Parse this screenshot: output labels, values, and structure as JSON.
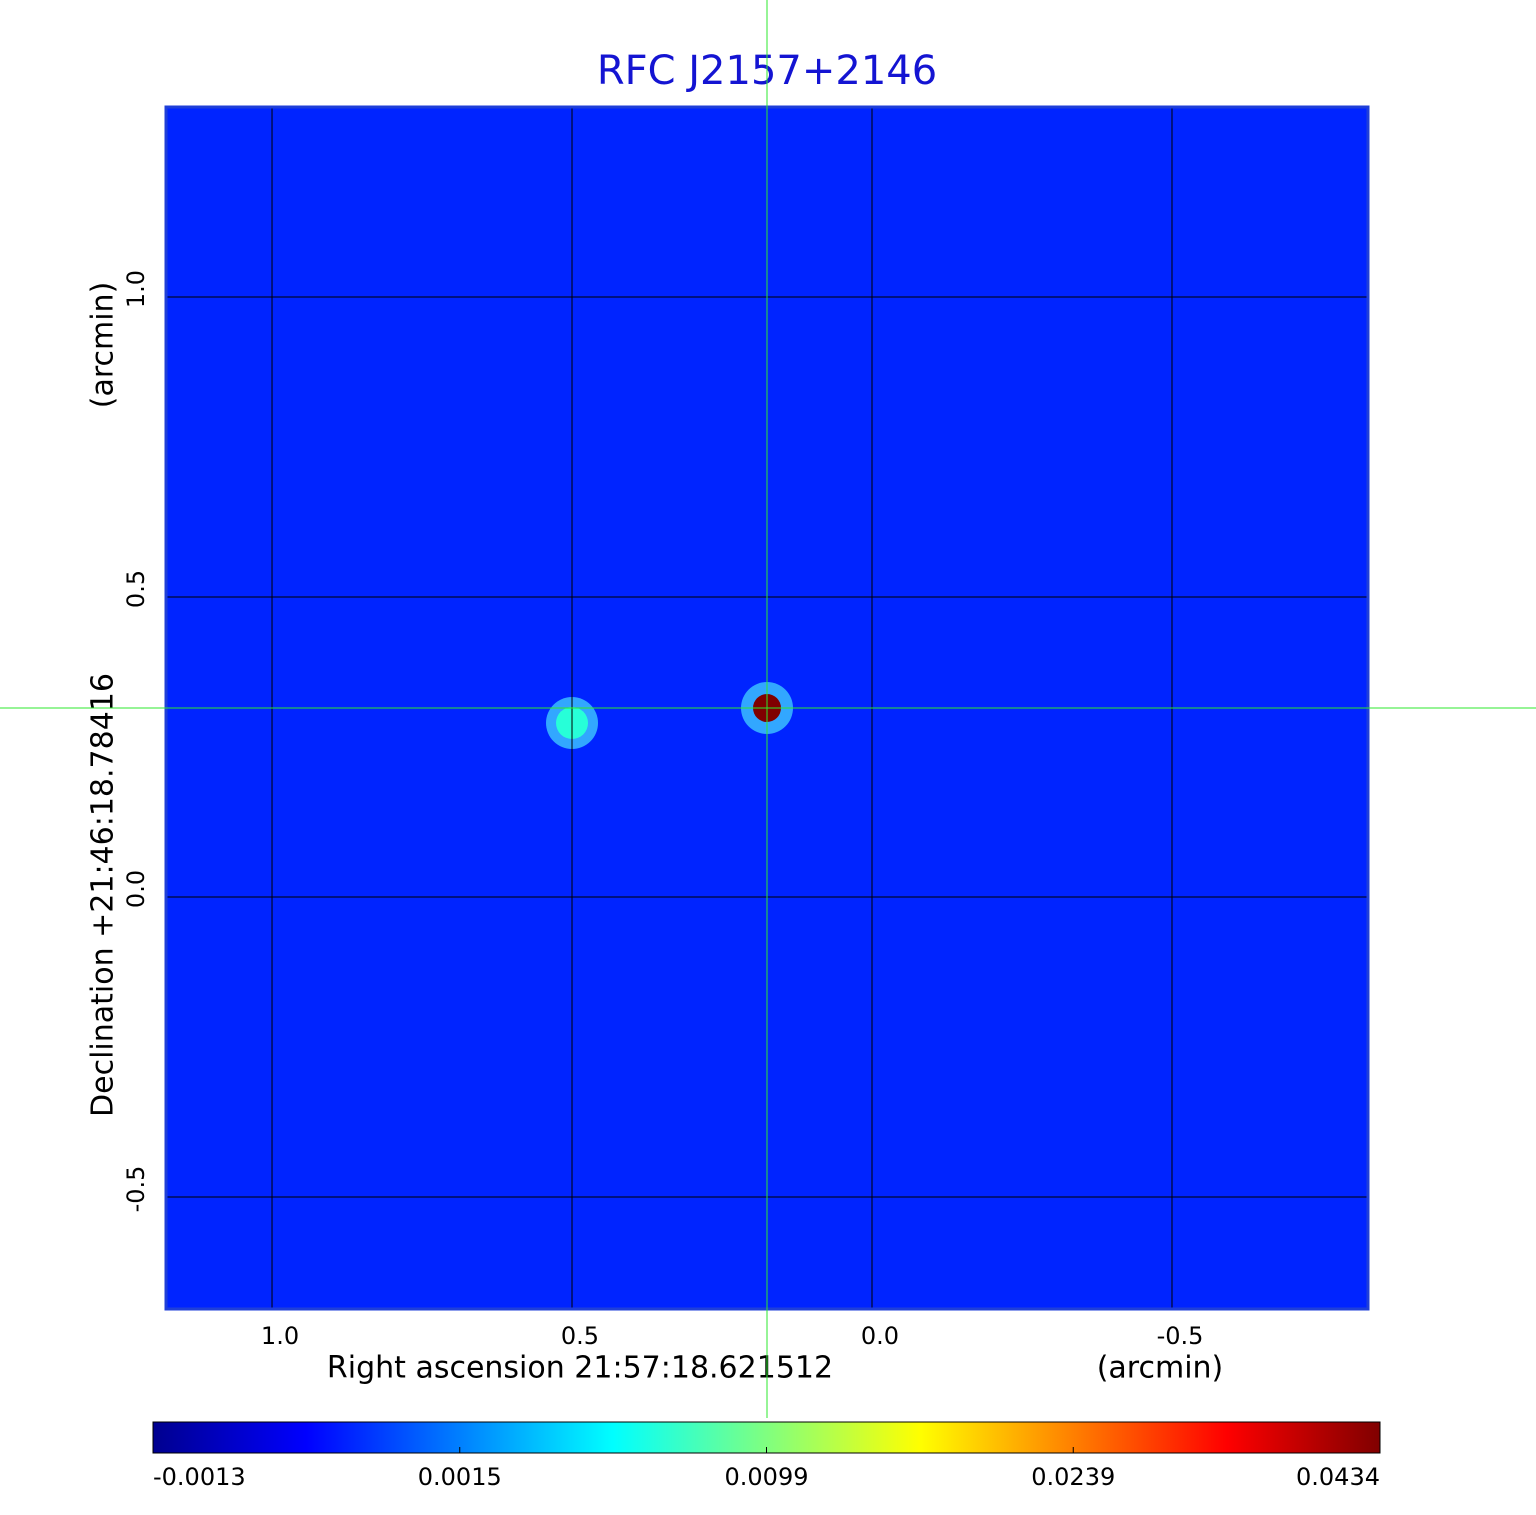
{
  "chart_data": {
    "type": "image",
    "title": "RFC J2157+2146",
    "x_label": "Right ascension  21:57:18.621512",
    "x_unit": "(arcmin)",
    "y_label": "Declination  +21:46:18.78416",
    "y_unit": "(arcmin)",
    "xlim": [
      1.1767,
      -0.8267
    ],
    "ylim": [
      -0.6867,
      1.3167
    ],
    "xticks": [
      {
        "value": 1,
        "label": "1.0"
      },
      0.5,
      {
        "value": 0,
        "label": "0.0"
      },
      -0.5
    ],
    "yticks": [
      {
        "value": 1,
        "label": "1.0"
      },
      0.5,
      {
        "value": 0,
        "label": "0.0"
      },
      -0.5
    ],
    "grid": true,
    "crosshair": {
      "x": 0.175,
      "y": 0.315
    },
    "background_value": 0.0005,
    "sources": [
      {
        "x": 0.175,
        "y": 0.315,
        "peak": 0.0434
      },
      {
        "x": 0.5,
        "y": 0.29,
        "peak": 0.007
      }
    ],
    "colorbar_ticks": [
      -0.0013,
      0.0015,
      0.0099,
      0.0239,
      0.0434
    ],
    "colormap": "jet"
  }
}
